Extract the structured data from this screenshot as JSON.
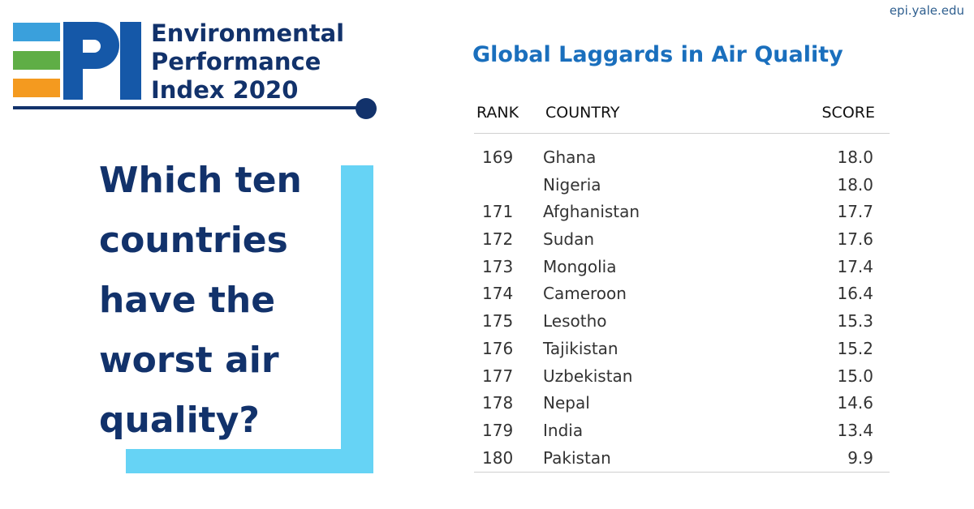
{
  "site_url": "epi.yale.edu",
  "logo": {
    "letters": "PI",
    "lines": [
      "Environmental",
      "Performance",
      "Index 2020"
    ],
    "colors": {
      "navy": "#12326b",
      "blue_bar": "#3aa0dc",
      "green_bar": "#5fae46",
      "orange_bar": "#f49a1f"
    }
  },
  "question": {
    "lines": [
      "Which ten",
      "countries",
      "have the",
      "worst air",
      "quality?"
    ],
    "accent_color": "#66d3f5"
  },
  "table": {
    "title": "Global Laggards in Air Quality",
    "headers": {
      "rank": "RANK",
      "country": "COUNTRY",
      "score": "SCORE"
    },
    "rows": [
      {
        "rank": "169",
        "country": "Ghana",
        "score": "18.0"
      },
      {
        "rank": "",
        "country": "Nigeria",
        "score": "18.0"
      },
      {
        "rank": "171",
        "country": "Afghanistan",
        "score": "17.7"
      },
      {
        "rank": "172",
        "country": "Sudan",
        "score": "17.6"
      },
      {
        "rank": "173",
        "country": "Mongolia",
        "score": "17.4"
      },
      {
        "rank": "174",
        "country": "Cameroon",
        "score": "16.4"
      },
      {
        "rank": "175",
        "country": "Lesotho",
        "score": "15.3"
      },
      {
        "rank": "176",
        "country": "Tajikistan",
        "score": "15.2"
      },
      {
        "rank": "177",
        "country": "Uzbekistan",
        "score": "15.0"
      },
      {
        "rank": "178",
        "country": "Nepal",
        "score": "14.6"
      },
      {
        "rank": "179",
        "country": "India",
        "score": "13.4"
      },
      {
        "rank": "180",
        "country": "Pakistan",
        "score": "9.9"
      }
    ],
    "title_color": "#1a6fbd"
  }
}
